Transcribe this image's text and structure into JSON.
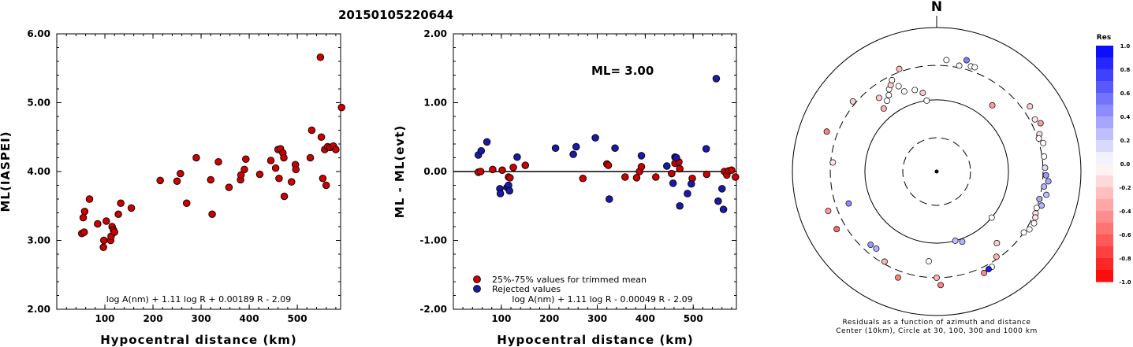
{
  "page_title": "20150105220644",
  "chart_data": [
    {
      "type": "scatter",
      "title": "20150105220644",
      "xlabel": "Hypocentral distance (km)",
      "ylabel": "ML(IASPEI)",
      "xlim": [
        0,
        590
      ],
      "ylim": [
        2.0,
        6.0
      ],
      "xticks": [
        "100",
        "200",
        "300",
        "400",
        "500"
      ],
      "yticks": [
        "2.00",
        "3.00",
        "4.00",
        "5.00",
        "6.00"
      ],
      "formula": "log A(nm) + 1.11 log R + 0.00189 R - 2.09",
      "points": [
        [
          52,
          3.1
        ],
        [
          55,
          3.33
        ],
        [
          57,
          3.12
        ],
        [
          58,
          3.42
        ],
        [
          68,
          3.6
        ],
        [
          85,
          3.24
        ],
        [
          97,
          2.9
        ],
        [
          98,
          3.0
        ],
        [
          103,
          3.28
        ],
        [
          112,
          3.0
        ],
        [
          113,
          3.06
        ],
        [
          115,
          3.2
        ],
        [
          118,
          3.15
        ],
        [
          120,
          3.12
        ],
        [
          128,
          3.38
        ],
        [
          133,
          3.54
        ],
        [
          155,
          3.47
        ],
        [
          215,
          3.87
        ],
        [
          250,
          3.86
        ],
        [
          257,
          3.97
        ],
        [
          270,
          3.54
        ],
        [
          290,
          4.2
        ],
        [
          320,
          3.88
        ],
        [
          323,
          3.38
        ],
        [
          336,
          4.14
        ],
        [
          358,
          3.77
        ],
        [
          382,
          3.88
        ],
        [
          383,
          3.95
        ],
        [
          390,
          4.03
        ],
        [
          393,
          4.18
        ],
        [
          422,
          3.96
        ],
        [
          445,
          4.16
        ],
        [
          455,
          4.05
        ],
        [
          460,
          4.32
        ],
        [
          462,
          3.9
        ],
        [
          465,
          4.33
        ],
        [
          470,
          4.27
        ],
        [
          472,
          4.2
        ],
        [
          473,
          3.64
        ],
        [
          488,
          3.85
        ],
        [
          496,
          4.1
        ],
        [
          497,
          4.03
        ],
        [
          527,
          4.2
        ],
        [
          530,
          4.6
        ],
        [
          548,
          5.66
        ],
        [
          550,
          4.5
        ],
        [
          553,
          3.9
        ],
        [
          557,
          4.32
        ],
        [
          560,
          3.8
        ],
        [
          563,
          4.36
        ],
        [
          568,
          4.35
        ],
        [
          575,
          4.37
        ],
        [
          580,
          4.32
        ],
        [
          592,
          4.93
        ]
      ]
    },
    {
      "type": "scatter",
      "xlabel": "Hypocentral distance (km)",
      "ylabel": "ML - ML(evt)",
      "xlim": [
        0,
        590
      ],
      "ylim": [
        -2.0,
        2.0
      ],
      "xticks": [
        "100",
        "200",
        "300",
        "400",
        "500"
      ],
      "yticks": [
        "-2.00",
        "-1.00",
        "0.00",
        "1.00",
        "2.00"
      ],
      "annotation": "ML= 3.00",
      "formula": "log A(nm) + 1.11 log R - 0.00049 R - 2.09",
      "legend": [
        {
          "label": "25%-75% values for trimmed mean",
          "color": "#cc0000"
        },
        {
          "label": "Rejected values",
          "color": "#1a1aa8"
        }
      ],
      "series": [
        {
          "name": "25%-75% values for trimmed mean",
          "color": "#cc0000",
          "points": [
            [
              52,
              -0.01
            ],
            [
              57,
              0.0
            ],
            [
              82,
              0.03
            ],
            [
              102,
              0.02
            ],
            [
              115,
              -0.08
            ],
            [
              118,
              -0.09
            ],
            [
              125,
              0.06
            ],
            [
              150,
              0.09
            ],
            [
              270,
              -0.1
            ],
            [
              320,
              0.11
            ],
            [
              323,
              0.09
            ],
            [
              358,
              -0.08
            ],
            [
              382,
              -0.09
            ],
            [
              388,
              0.0
            ],
            [
              392,
              0.07
            ],
            [
              422,
              -0.08
            ],
            [
              455,
              -0.03
            ],
            [
              462,
              0.12
            ],
            [
              470,
              0.14
            ],
            [
              472,
              0.04
            ],
            [
              498,
              -0.1
            ],
            [
              528,
              -0.04
            ],
            [
              565,
              0.0
            ],
            [
              570,
              -0.05
            ],
            [
              574,
              0.01
            ],
            [
              580,
              0.02
            ],
            [
              588,
              -0.08
            ]
          ]
        },
        {
          "name": "Rejected values",
          "color": "#1a1aa8",
          "points": [
            [
              52,
              0.24
            ],
            [
              58,
              0.3
            ],
            [
              70,
              0.43
            ],
            [
              97,
              -0.25
            ],
            [
              98,
              -0.32
            ],
            [
              112,
              -0.23
            ],
            [
              115,
              -0.2
            ],
            [
              117,
              -0.28
            ],
            [
              133,
              0.21
            ],
            [
              213,
              0.34
            ],
            [
              250,
              0.25
            ],
            [
              256,
              0.36
            ],
            [
              296,
              0.49
            ],
            [
              325,
              -0.4
            ],
            [
              337,
              0.34
            ],
            [
              392,
              0.23
            ],
            [
              445,
              0.08
            ],
            [
              458,
              -0.17
            ],
            [
              462,
              0.21
            ],
            [
              465,
              0.2
            ],
            [
              472,
              -0.5
            ],
            [
              488,
              -0.32
            ],
            [
              496,
              -0.18
            ],
            [
              527,
              0.33
            ],
            [
              548,
              1.35
            ],
            [
              552,
              -0.43
            ],
            [
              560,
              -0.25
            ],
            [
              563,
              -0.55
            ]
          ]
        }
      ]
    },
    {
      "type": "scatter",
      "subtype": "polar-residuals",
      "north_label": "N",
      "caption_line1": "Residuals as a function of azimuth and distance",
      "caption_line2": "Center (10km), Circle at 30, 100, 300 and 1000 km",
      "colorbar_title": "Res",
      "colorbar_ticks": [
        "1.0",
        "0.8",
        "0.6",
        "0.4",
        "0.2",
        "0.0",
        "-0.2",
        "-0.4",
        "-0.6",
        "-0.8",
        "-1.0"
      ],
      "rings_km": [
        30,
        100,
        300,
        1000
      ],
      "residual_range": [
        -1.0,
        1.0
      ],
      "stations": [
        {
          "az": 5,
          "km": 360,
          "res": 0.0
        },
        {
          "az": 12,
          "km": 320,
          "res": -0.05
        },
        {
          "az": 18,
          "km": 345,
          "res": 0.0
        },
        {
          "az": 20,
          "km": 350,
          "res": 0.0
        },
        {
          "az": 15,
          "km": 400,
          "res": 0.5
        },
        {
          "az": 40,
          "km": 160,
          "res": -0.4
        },
        {
          "az": 55,
          "km": 380,
          "res": -0.2
        },
        {
          "az": 62,
          "km": 350,
          "res": -0.1
        },
        {
          "az": 65,
          "km": 390,
          "res": -0.4
        },
        {
          "az": 70,
          "km": 330,
          "res": -0.15
        },
        {
          "az": 72,
          "km": 310,
          "res": 0.0
        },
        {
          "az": 75,
          "km": 340,
          "res": 0.0
        },
        {
          "az": 82,
          "km": 320,
          "res": 0.0
        },
        {
          "az": 88,
          "km": 320,
          "res": 0.15
        },
        {
          "az": 92,
          "km": 330,
          "res": 0.4
        },
        {
          "az": 95,
          "km": 360,
          "res": 0.35
        },
        {
          "az": 98,
          "km": 320,
          "res": 0.3
        },
        {
          "az": 102,
          "km": 360,
          "res": 0.25
        },
        {
          "az": 105,
          "km": 300,
          "res": 0.35
        },
        {
          "az": 108,
          "km": 340,
          "res": 0.3
        },
        {
          "az": 110,
          "km": 300,
          "res": 0.0
        },
        {
          "az": 113,
          "km": 310,
          "res": -0.1
        },
        {
          "az": 115,
          "km": 325,
          "res": -0.1
        },
        {
          "az": 118,
          "km": 340,
          "res": 0.0
        },
        {
          "az": 122,
          "km": 330,
          "res": 0.0
        },
        {
          "az": 125,
          "km": 300,
          "res": 0.0
        },
        {
          "az": 130,
          "km": 100,
          "res": 0.0
        },
        {
          "az": 140,
          "km": 200,
          "res": -0.2
        },
        {
          "az": 145,
          "km": 280,
          "res": -0.3
        },
        {
          "az": 150,
          "km": 340,
          "res": 0.0
        },
        {
          "az": 152,
          "km": 345,
          "res": 0.9
        },
        {
          "az": 155,
          "km": 360,
          "res": -0.45
        },
        {
          "az": 160,
          "km": 110,
          "res": 0.3
        },
        {
          "az": 165,
          "km": 100,
          "res": 0.25
        },
        {
          "az": 178,
          "km": 380,
          "res": -0.5
        },
        {
          "az": 180,
          "km": 300,
          "res": -0.3
        },
        {
          "az": 185,
          "km": 180,
          "res": 0.0
        },
        {
          "az": 200,
          "km": 370,
          "res": -0.5
        },
        {
          "az": 210,
          "km": 280,
          "res": -0.3
        },
        {
          "az": 218,
          "km": 230,
          "res": 0.3
        },
        {
          "az": 222,
          "km": 235,
          "res": 0.4
        },
        {
          "az": 240,
          "km": 400,
          "res": -0.6
        },
        {
          "az": 250,
          "km": 400,
          "res": -0.4
        },
        {
          "az": 250,
          "km": 200,
          "res": 0.45
        },
        {
          "az": 275,
          "km": 280,
          "res": -0.1
        },
        {
          "az": 290,
          "km": 420,
          "res": -0.5
        },
        {
          "az": 310,
          "km": 330,
          "res": -0.2
        },
        {
          "az": 320,
          "km": 140,
          "res": -0.3
        },
        {
          "az": 322,
          "km": 200,
          "res": -0.2
        },
        {
          "az": 325,
          "km": 160,
          "res": 0.0
        },
        {
          "az": 328,
          "km": 180,
          "res": 0.0
        },
        {
          "az": 330,
          "km": 210,
          "res": 0.0
        },
        {
          "az": 332,
          "km": 230,
          "res": -0.2
        },
        {
          "az": 334,
          "km": 260,
          "res": -0.05
        },
        {
          "az": 336,
          "km": 200,
          "res": 0.0
        },
        {
          "az": 338,
          "km": 160,
          "res": 0.0
        },
        {
          "az": 340,
          "km": 330,
          "res": -0.25
        },
        {
          "az": 345,
          "km": 150,
          "res": 0.0
        },
        {
          "az": 350,
          "km": 130,
          "res": -0.2
        },
        {
          "az": 352,
          "km": 100,
          "res": 0.0
        }
      ]
    }
  ]
}
